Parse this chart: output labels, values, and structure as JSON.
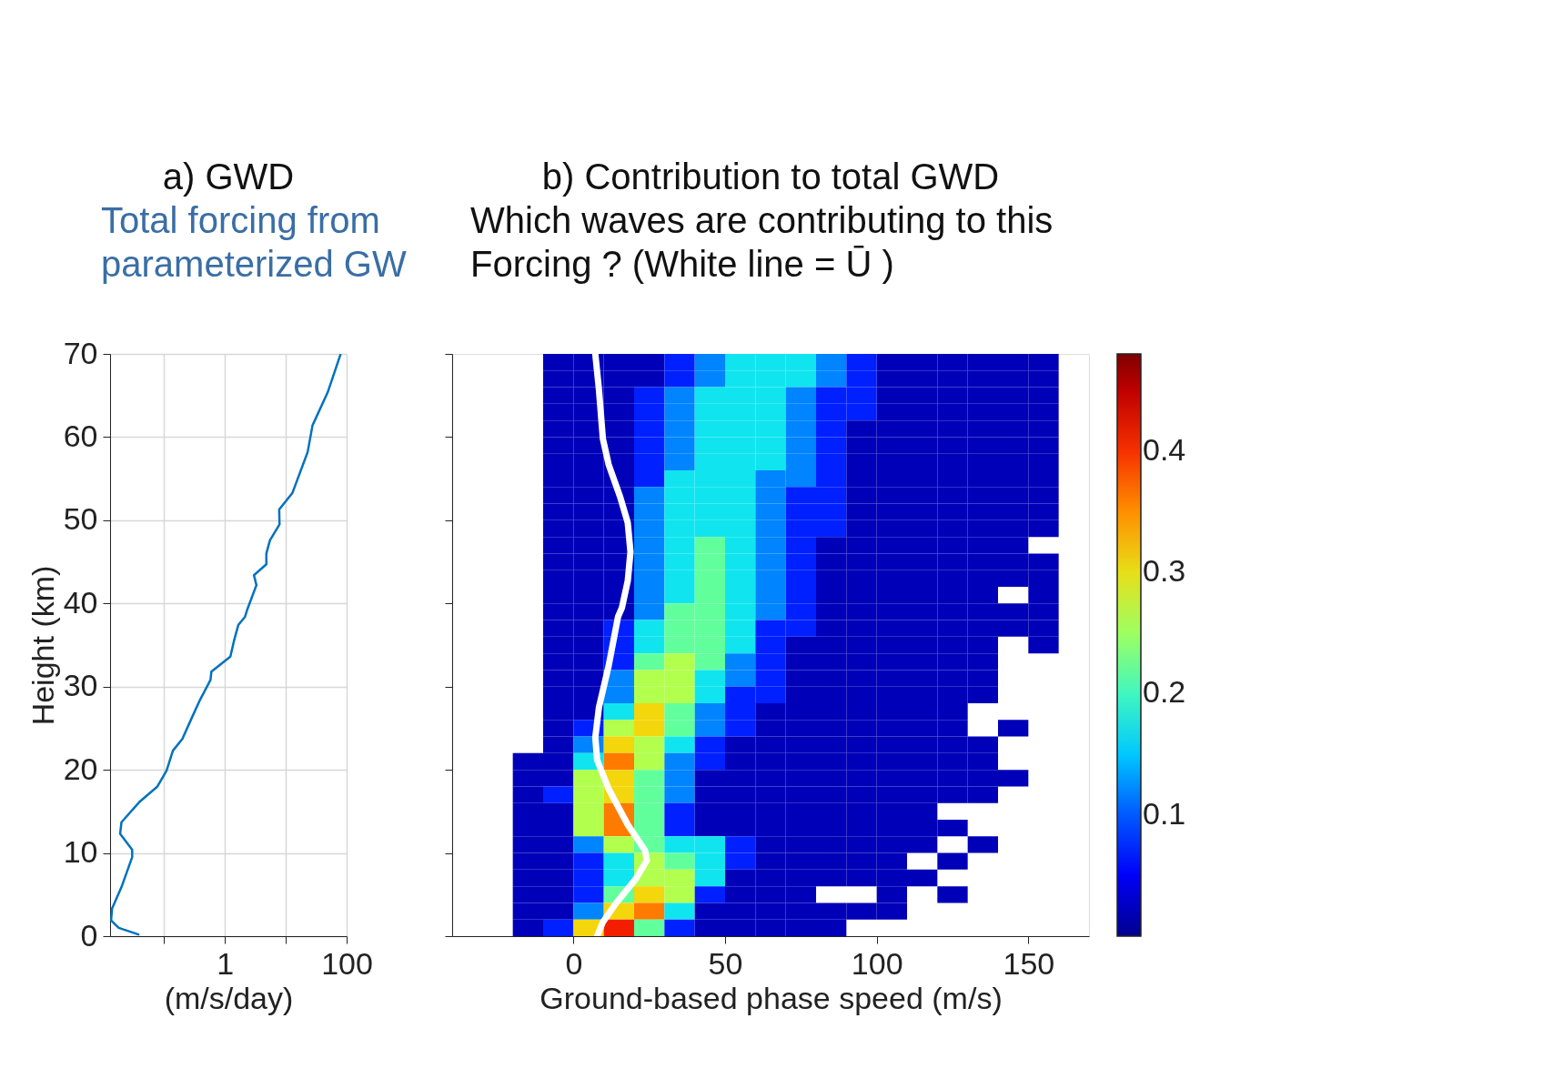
{
  "chart_data": [
    {
      "type": "line",
      "orientation": "horizontal",
      "title": "a) GWD",
      "xlabel": "(m/s/day)",
      "ylabel": "Height (km)",
      "annotations": [
        "Total forcing from parameterized GW"
      ],
      "log": "x",
      "xlim": [
        0.013,
        100
      ],
      "xticks": [
        {
          "value": 0.1,
          "label": null
        },
        1,
        {
          "value": 10,
          "label": null
        },
        100
      ],
      "ylim": [
        0,
        70
      ],
      "yticks": [
        0,
        10,
        20,
        30,
        40,
        50,
        60,
        70
      ],
      "grid": true,
      "series": [
        {
          "color": "#0072bd",
          "values": [
            0.038,
            0.018,
            0.0135,
            0.014,
            0.02,
            0.03,
            0.03,
            0.019,
            0.02,
            0.039,
            0.078,
            0.11,
            0.14,
            0.2,
            0.28,
            0.39,
            0.58,
            0.6,
            1.23,
            1.41,
            1.66,
            2.14,
            2.34,
            3.3,
            3.0,
            4.8,
            4.8,
            5.5,
            7.9,
            7.8,
            12.9,
            22.9,
            27.5,
            49,
            79
          ],
          "x": [
            0.2,
            1.0,
            1.9,
            3.3,
            5.9,
            9.5,
            10.4,
            12.3,
            13.7,
            16.1,
            18.0,
            19.9,
            22.3,
            23.7,
            26.1,
            28.4,
            30.8,
            31.8,
            33.6,
            35.5,
            37.4,
            38.4,
            39.3,
            42.2,
            43.4,
            44.7,
            46.0,
            47.6,
            49.5,
            51.3,
            53.3,
            58.2,
            61.4,
            65.4,
            69.9
          ]
        }
      ]
    },
    {
      "type": "heatmap",
      "title": "b) Contribution to total GWD",
      "xlabel": "Ground-based phase speed (m/s)",
      "annotations": [
        "Which waves are contributing to this Forcing ? (White line = Ū )"
      ],
      "xlim": [
        -40,
        170
      ],
      "xticks": [
        0,
        50,
        100,
        150
      ],
      "ylim": [
        0,
        70
      ],
      "yticks": [
        0,
        10,
        20,
        30,
        40,
        50,
        60,
        70
      ],
      "tick_labels": "x",
      "x": [
        -15,
        -5,
        5,
        15,
        25,
        35,
        45,
        55,
        65,
        75,
        85,
        95,
        105,
        115,
        125,
        135,
        145,
        155
      ],
      "y": [
        69,
        67,
        65,
        63,
        61,
        59,
        57,
        55,
        53,
        51,
        49,
        47,
        45,
        43,
        41,
        39,
        37,
        35,
        33,
        31,
        29,
        27,
        25,
        23,
        21,
        19,
        17,
        15,
        13,
        11,
        9,
        7,
        5,
        3,
        1
      ],
      "colors": [
        "#00008f",
        "#0000ff",
        "#0066ff",
        "#00dfff",
        "#55ffaa",
        "#bfff40",
        "#ffcc00",
        "#ff6000",
        "#ee0000",
        "#800000"
      ],
      "clim": [
        0,
        0.48
      ],
      "cticks": [
        0.1,
        0.2,
        0.3,
        0.4
      ],
      "cells": [
        [
          null,
          0.02,
          0.02,
          0.02,
          0.02,
          0.07,
          0.12,
          0.17,
          0.17,
          0.17,
          0.12,
          0.07,
          0.02,
          0.02,
          0.02,
          0.02,
          0.02,
          0.02
        ],
        [
          null,
          0.02,
          0.02,
          0.02,
          0.02,
          0.07,
          0.12,
          0.17,
          0.17,
          0.17,
          0.12,
          0.07,
          0.02,
          0.02,
          0.02,
          0.02,
          0.02,
          0.02
        ],
        [
          null,
          0.02,
          0.02,
          0.02,
          0.07,
          0.12,
          0.17,
          0.17,
          0.17,
          0.12,
          0.07,
          0.07,
          0.02,
          0.02,
          0.02,
          0.02,
          0.02,
          0.02
        ],
        [
          null,
          0.02,
          0.02,
          0.02,
          0.07,
          0.12,
          0.17,
          0.17,
          0.17,
          0.12,
          0.07,
          0.07,
          0.02,
          0.02,
          0.02,
          0.02,
          0.02,
          0.02
        ],
        [
          null,
          0.02,
          0.02,
          0.02,
          0.07,
          0.12,
          0.17,
          0.17,
          0.17,
          0.12,
          0.07,
          0.02,
          0.02,
          0.02,
          0.02,
          0.02,
          0.02,
          0.02
        ],
        [
          null,
          0.02,
          0.02,
          0.02,
          0.07,
          0.12,
          0.17,
          0.17,
          0.17,
          0.12,
          0.07,
          0.02,
          0.02,
          0.02,
          0.02,
          0.02,
          0.02,
          0.02
        ],
        [
          null,
          0.02,
          0.02,
          0.02,
          0.07,
          0.12,
          0.17,
          0.17,
          0.17,
          0.12,
          0.07,
          0.02,
          0.02,
          0.02,
          0.02,
          0.02,
          0.02,
          0.02
        ],
        [
          null,
          0.02,
          0.02,
          0.02,
          0.07,
          0.17,
          0.17,
          0.17,
          0.12,
          0.12,
          0.07,
          0.02,
          0.02,
          0.02,
          0.02,
          0.02,
          0.02,
          0.02
        ],
        [
          null,
          0.02,
          0.02,
          0.02,
          0.12,
          0.17,
          0.17,
          0.17,
          0.12,
          0.07,
          0.07,
          0.02,
          0.02,
          0.02,
          0.02,
          0.02,
          0.02,
          0.02
        ],
        [
          null,
          0.02,
          0.02,
          0.02,
          0.12,
          0.17,
          0.17,
          0.17,
          0.12,
          0.07,
          0.07,
          0.02,
          0.02,
          0.02,
          0.02,
          0.02,
          0.02,
          0.02
        ],
        [
          null,
          0.02,
          0.02,
          0.02,
          0.12,
          0.17,
          0.17,
          0.17,
          0.12,
          0.07,
          0.07,
          0.02,
          0.02,
          0.02,
          0.02,
          0.02,
          0.02,
          0.02
        ],
        [
          null,
          0.02,
          0.02,
          0.02,
          0.12,
          0.17,
          0.22,
          0.17,
          0.12,
          0.07,
          0.02,
          0.02,
          0.02,
          0.02,
          0.02,
          0.02,
          0.02,
          null
        ],
        [
          null,
          0.02,
          0.02,
          0.02,
          0.12,
          0.17,
          0.22,
          0.17,
          0.12,
          0.07,
          0.02,
          0.02,
          0.02,
          0.02,
          0.02,
          0.02,
          0.02,
          0.02
        ],
        [
          null,
          0.02,
          0.02,
          0.02,
          0.12,
          0.17,
          0.22,
          0.17,
          0.12,
          0.07,
          0.02,
          0.02,
          0.02,
          0.02,
          0.02,
          0.02,
          0.02,
          0.02
        ],
        [
          null,
          0.02,
          0.02,
          0.02,
          0.12,
          0.17,
          0.22,
          0.17,
          0.12,
          0.07,
          0.02,
          0.02,
          0.02,
          0.02,
          0.02,
          0.02,
          null,
          0.02
        ],
        [
          null,
          0.02,
          0.02,
          0.02,
          0.12,
          0.22,
          0.22,
          0.17,
          0.12,
          0.07,
          0.02,
          0.02,
          0.02,
          0.02,
          0.02,
          0.02,
          0.02,
          0.02
        ],
        [
          null,
          0.02,
          0.02,
          0.07,
          0.17,
          0.22,
          0.22,
          0.17,
          0.07,
          0.07,
          0.02,
          0.02,
          0.02,
          0.02,
          0.02,
          0.02,
          0.02,
          0.02
        ],
        [
          null,
          0.02,
          0.02,
          0.07,
          0.17,
          0.22,
          0.22,
          0.17,
          0.07,
          0.02,
          0.02,
          0.02,
          0.02,
          0.02,
          0.02,
          0.02,
          null,
          0.02
        ],
        [
          null,
          0.02,
          0.02,
          0.07,
          0.22,
          0.26,
          0.22,
          0.12,
          0.07,
          0.02,
          0.02,
          0.02,
          0.02,
          0.02,
          0.02,
          0.02,
          null,
          null
        ],
        [
          null,
          0.02,
          0.02,
          0.12,
          0.26,
          0.26,
          0.17,
          0.12,
          0.07,
          0.02,
          0.02,
          0.02,
          0.02,
          0.02,
          0.02,
          0.02,
          null,
          null
        ],
        [
          null,
          0.02,
          0.02,
          0.12,
          0.26,
          0.26,
          0.17,
          0.07,
          0.07,
          0.02,
          0.02,
          0.02,
          0.02,
          0.02,
          0.02,
          0.02,
          null,
          null
        ],
        [
          null,
          0.02,
          0.02,
          0.17,
          0.31,
          0.22,
          0.12,
          0.07,
          0.02,
          0.02,
          0.02,
          0.02,
          0.02,
          0.02,
          0.02,
          null,
          null,
          null
        ],
        [
          null,
          0.02,
          0.07,
          0.26,
          0.31,
          0.22,
          0.12,
          0.07,
          0.02,
          0.02,
          0.02,
          0.02,
          0.02,
          0.02,
          0.02,
          null,
          0.02,
          null
        ],
        [
          null,
          0.02,
          0.12,
          0.31,
          0.26,
          0.17,
          0.07,
          0.02,
          0.02,
          0.02,
          0.02,
          0.02,
          0.02,
          0.02,
          0.02,
          0.02,
          null,
          null
        ],
        [
          0.02,
          0.02,
          0.17,
          0.36,
          0.26,
          0.12,
          0.07,
          0.02,
          0.02,
          0.02,
          0.02,
          0.02,
          0.02,
          0.02,
          0.02,
          0.02,
          null,
          null
        ],
        [
          0.02,
          0.02,
          0.26,
          0.31,
          0.22,
          0.12,
          0.02,
          0.02,
          0.02,
          0.02,
          0.02,
          0.02,
          0.02,
          0.02,
          0.02,
          0.02,
          0.02,
          null
        ],
        [
          0.02,
          0.07,
          0.26,
          0.31,
          0.22,
          0.12,
          0.02,
          0.02,
          0.02,
          0.02,
          0.02,
          0.02,
          0.02,
          0.02,
          0.02,
          0.02,
          null,
          null
        ],
        [
          0.02,
          0.02,
          0.26,
          0.36,
          0.22,
          0.07,
          0.02,
          0.02,
          0.02,
          0.02,
          0.02,
          0.02,
          0.02,
          0.02,
          null,
          null,
          null,
          null
        ],
        [
          0.02,
          0.02,
          0.26,
          0.36,
          0.22,
          0.07,
          0.02,
          0.02,
          0.02,
          0.02,
          0.02,
          0.02,
          0.02,
          0.02,
          0.02,
          null,
          null,
          null
        ],
        [
          0.02,
          0.02,
          0.12,
          0.26,
          0.22,
          0.17,
          0.17,
          0.07,
          0.02,
          0.02,
          0.02,
          0.02,
          0.02,
          0.02,
          null,
          0.02,
          null,
          null
        ],
        [
          0.02,
          0.02,
          0.07,
          0.17,
          0.26,
          0.22,
          0.17,
          0.07,
          0.02,
          0.02,
          0.02,
          0.02,
          0.02,
          null,
          0.02,
          null,
          null,
          null
        ],
        [
          0.02,
          0.02,
          0.07,
          0.17,
          0.26,
          0.26,
          0.17,
          0.02,
          0.02,
          0.02,
          0.02,
          0.02,
          0.02,
          0.02,
          null,
          null,
          null,
          null
        ],
        [
          0.02,
          0.02,
          0.07,
          0.22,
          0.31,
          0.26,
          0.07,
          0.02,
          0.02,
          0.02,
          null,
          null,
          0.02,
          null,
          0.02,
          null,
          null,
          null
        ],
        [
          0.02,
          0.02,
          0.12,
          0.31,
          0.36,
          0.17,
          0.02,
          0.02,
          0.02,
          0.02,
          0.02,
          0.02,
          0.02,
          null,
          null,
          null,
          null,
          null
        ],
        [
          0.02,
          0.07,
          0.31,
          0.41,
          0.22,
          0.07,
          0.02,
          0.02,
          0.02,
          0.02,
          0.02,
          null,
          null,
          null,
          null,
          null,
          null,
          null
        ]
      ],
      "series": [
        {
          "type": "line",
          "color": "#ffffff",
          "x": [
            7.8,
            9.7,
            14.1,
            20.4,
            24.2,
            23.6,
            17.9,
            11.6,
            7.8,
            7.2,
            8.4,
            11.6,
            14.7,
            16.0,
            17.9,
            18.8,
            17.9,
            15.4,
            11.6,
            9.7,
            8.4,
            7.2
          ],
          "values": [
            0,
            1.7,
            4.0,
            6.8,
            9.1,
            10.3,
            13.4,
            17.7,
            21.2,
            23.9,
            27.5,
            32.5,
            38.4,
            39.5,
            42.7,
            46.2,
            49.7,
            52.8,
            56.7,
            59.8,
            65.7,
            70
          ]
        }
      ]
    }
  ]
}
